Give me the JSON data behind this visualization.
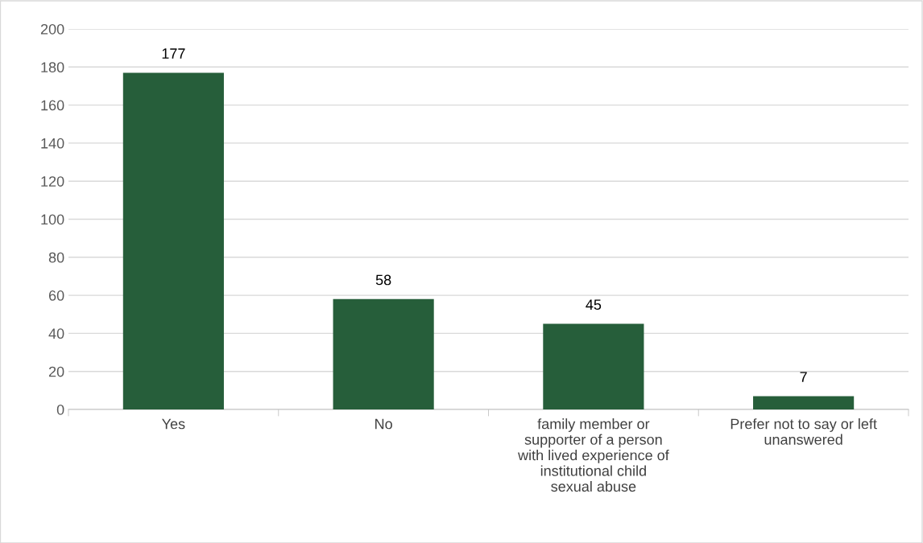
{
  "chart_data": {
    "type": "bar",
    "categories": [
      "Yes",
      "No",
      "family member or supporter of a person with lived experience of institutional child sexual abuse",
      "Prefer not to say or left unanswered"
    ],
    "values": [
      177,
      58,
      45,
      7
    ],
    "color": "#265e3a",
    "ylim": [
      0,
      200
    ],
    "yticks": [
      0,
      20,
      40,
      60,
      80,
      100,
      120,
      140,
      160,
      180,
      200
    ],
    "grid": "y",
    "data_labels": true
  }
}
